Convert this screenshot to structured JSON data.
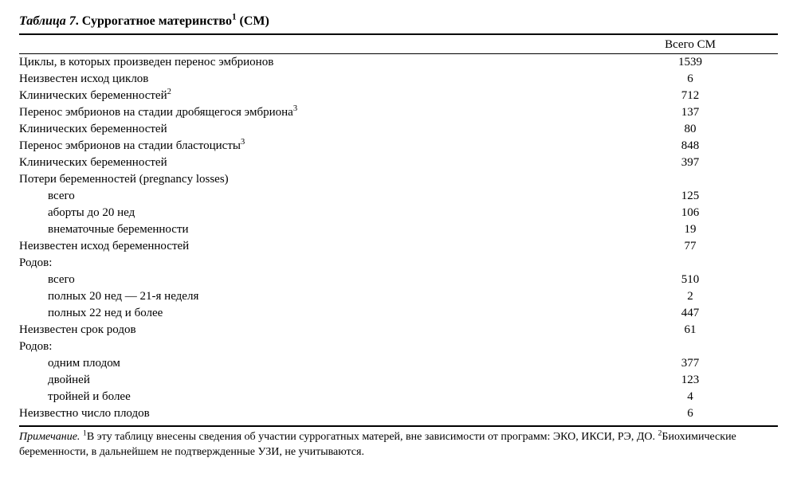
{
  "title_prefix": "Таблица 7",
  "title_rest": ". Суррогатное материнство¹ (СМ)",
  "header_value": "Всего СМ",
  "rows": [
    {
      "label_html": "Циклы, в которых произведен перенос эмбрионов",
      "value": "1539",
      "indent": false
    },
    {
      "label_html": "Неизвестен исход циклов",
      "value": "6",
      "indent": false
    },
    {
      "label_html": "Клинических беременностей²",
      "value": "712",
      "indent": false
    },
    {
      "label_html": "Перенос эмбрионов на стадии дробящегося эмбриона³",
      "value": "137",
      "indent": false
    },
    {
      "label_html": "Клинических беременностей",
      "value": "80",
      "indent": false
    },
    {
      "label_html": "Перенос эмбрионов на стадии бластоцисты³",
      "value": "848",
      "indent": false
    },
    {
      "label_html": "Клинических беременностей",
      "value": "397",
      "indent": false
    },
    {
      "label_html": "Потери беременностей (pregnancy losses)",
      "value": "",
      "indent": false
    },
    {
      "label_html": "всего",
      "value": "125",
      "indent": true
    },
    {
      "label_html": "аборты до 20 нед",
      "value": "106",
      "indent": true
    },
    {
      "label_html": "внематочные беременности",
      "value": "19",
      "indent": true
    },
    {
      "label_html": "Неизвестен исход беременностей",
      "value": "77",
      "indent": false
    },
    {
      "label_html": "Родов:",
      "value": "",
      "indent": false
    },
    {
      "label_html": "всего",
      "value": "510",
      "indent": true
    },
    {
      "label_html": "полных 20 нед — 21-я неделя",
      "value": "2",
      "indent": true
    },
    {
      "label_html": "полных 22 нед и более",
      "value": "447",
      "indent": true
    },
    {
      "label_html": "Неизвестен срок родов",
      "value": "61",
      "indent": false
    },
    {
      "label_html": "Родов:",
      "value": "",
      "indent": false
    },
    {
      "label_html": "одним плодом",
      "value": "377",
      "indent": true
    },
    {
      "label_html": "двойней",
      "value": "123",
      "indent": true
    },
    {
      "label_html": "тройней и более",
      "value": "4",
      "indent": true
    },
    {
      "label_html": "Неизвестно число плодов",
      "value": "6",
      "indent": false
    }
  ],
  "footnote_lead": "Примечание.",
  "footnote_body": " ¹В эту таблицу внесены сведения об участии суррогатных матерей, вне зависимости от программ: ЭКО, ИКСИ, РЭ, ДО. ²Биохимические беременности, в дальнейшем не подтвержденные УЗИ, не учитываются."
}
